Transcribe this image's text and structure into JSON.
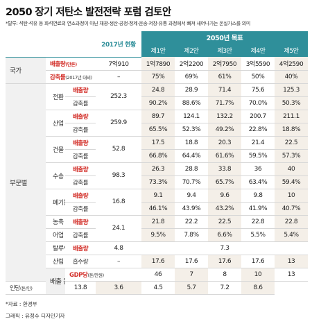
{
  "title": "2050 장기 저탄소 발전전략 포럼 검토안",
  "note": "*탈루: 석탄·석유 등 화석연료의 연소과정이 아닌 채광·생산·공정·정제·운송·저장·유통 과정에서 빠져 새어나가는 온실가스를 의미",
  "header": {
    "base_year": "2017년 현황",
    "target": "2050년 목표",
    "plans": [
      "제1안",
      "제2안",
      "제3안",
      "제4안",
      "제5안"
    ]
  },
  "national": {
    "group": "국가",
    "emission_label": "배출량",
    "emission_unit": "(만톤)",
    "reduction_label": "감축률",
    "reduction_sub": "(2017년 대비)",
    "base": "7억910",
    "emissions": [
      "1억7890",
      "2억2200",
      "2억7950",
      "3억5590",
      "4억2590"
    ],
    "reductions": [
      "75%",
      "69%",
      "61%",
      "50%",
      "40%"
    ]
  },
  "sector_group": "부문별",
  "emission_label": "배출량",
  "reduction_label": "감축률",
  "sectors": [
    {
      "name": "전환",
      "base": "252.3",
      "emissions": [
        "24.8",
        "28.9",
        "71.4",
        "75.6",
        "125.3"
      ],
      "reductions": [
        "90.2%",
        "88.6%",
        "71.7%",
        "70.0%",
        "50.3%"
      ]
    },
    {
      "name": "산업",
      "base": "259.9",
      "emissions": [
        "89.7",
        "124.1",
        "132.2",
        "200.7",
        "211.1"
      ],
      "reductions": [
        "65.5%",
        "52.3%",
        "49.2%",
        "22.8%",
        "18.8%"
      ]
    },
    {
      "name": "건물",
      "base": "52.8",
      "emissions": [
        "17.5",
        "18.8",
        "20.3",
        "21.4",
        "22.5"
      ],
      "reductions": [
        "66.8%",
        "64.4%",
        "61.6%",
        "59.5%",
        "57.3%"
      ]
    },
    {
      "name": "수송",
      "base": "98.3",
      "emissions": [
        "26.3",
        "28.8",
        "33.8",
        "36",
        "40"
      ],
      "reductions": [
        "73.3%",
        "70.7%",
        "65.7%",
        "63.4%",
        "59.4%"
      ]
    },
    {
      "name": "폐기물",
      "base": "16.8",
      "emissions": [
        "9.1",
        "9.4",
        "9.6",
        "9.8",
        "10"
      ],
      "reductions": [
        "46.1%",
        "43.9%",
        "43.2%",
        "41.9%",
        "40.7%"
      ]
    },
    {
      "name": "농축",
      "name2": "어업",
      "base": "24.1",
      "emissions": [
        "21.8",
        "22.2",
        "22.5",
        "22.8",
        "22.8"
      ],
      "reductions": [
        "9.5%",
        "7.8%",
        "6.6%",
        "5.5%",
        "5.4%"
      ]
    }
  ],
  "leakage": {
    "name": "탈루* 등",
    "label": "배출량",
    "base": "4.8",
    "value": "7.3"
  },
  "forest": {
    "name": "산림",
    "label": "흡수량",
    "base": "–",
    "values": [
      "17.6",
      "17.6",
      "17.6",
      "17.6",
      "13"
    ]
  },
  "intensity": {
    "group": "배출 원단위",
    "gdp_label": "GDP당",
    "gdp_unit": "(톤/만원)",
    "gdp_base": "46",
    "gdp_values": [
      "7",
      "8",
      "10",
      "13",
      "16"
    ],
    "capita_label": "인당",
    "capita_unit": "(톤/인)",
    "capita_base": "13.8",
    "capita_values": [
      "3.6",
      "4.5",
      "5.7",
      "7.2",
      "8.6"
    ]
  },
  "source": "*자료 : 환경부",
  "credit": "그래픽 : 유정수 디자인기자"
}
